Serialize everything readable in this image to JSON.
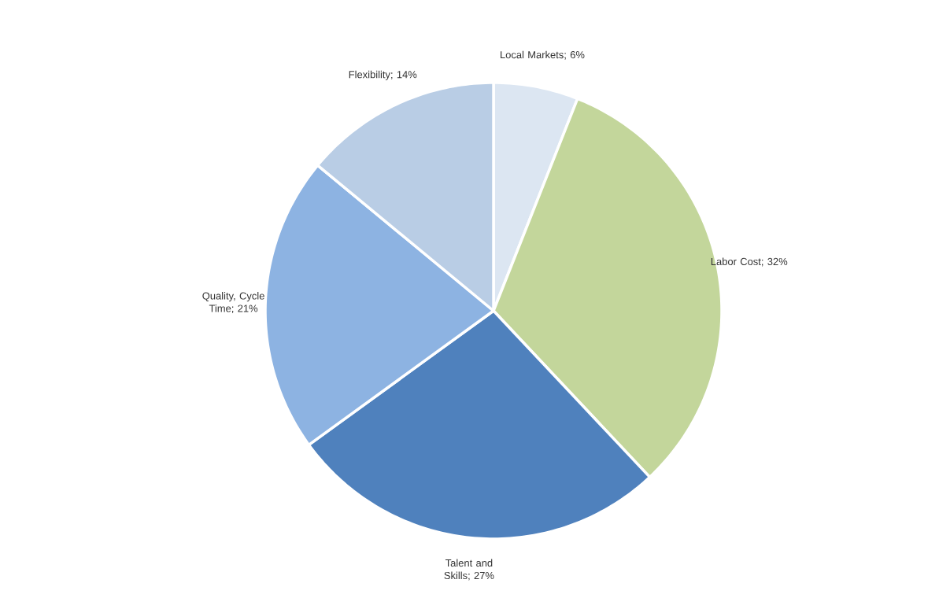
{
  "chart_data": {
    "type": "pie",
    "categories": [
      "Local Markets; 6%",
      "Labor Cost; 32%",
      "Talent and Skills; 27%",
      "Quality, Cycle Time; 21%",
      "Flexibility; 14%"
    ],
    "values": [
      6,
      32,
      27,
      21,
      14
    ],
    "colors": [
      "#dce6f2",
      "#c3d69b",
      "#4f81bd",
      "#8db3e2",
      "#b9cde5"
    ]
  }
}
